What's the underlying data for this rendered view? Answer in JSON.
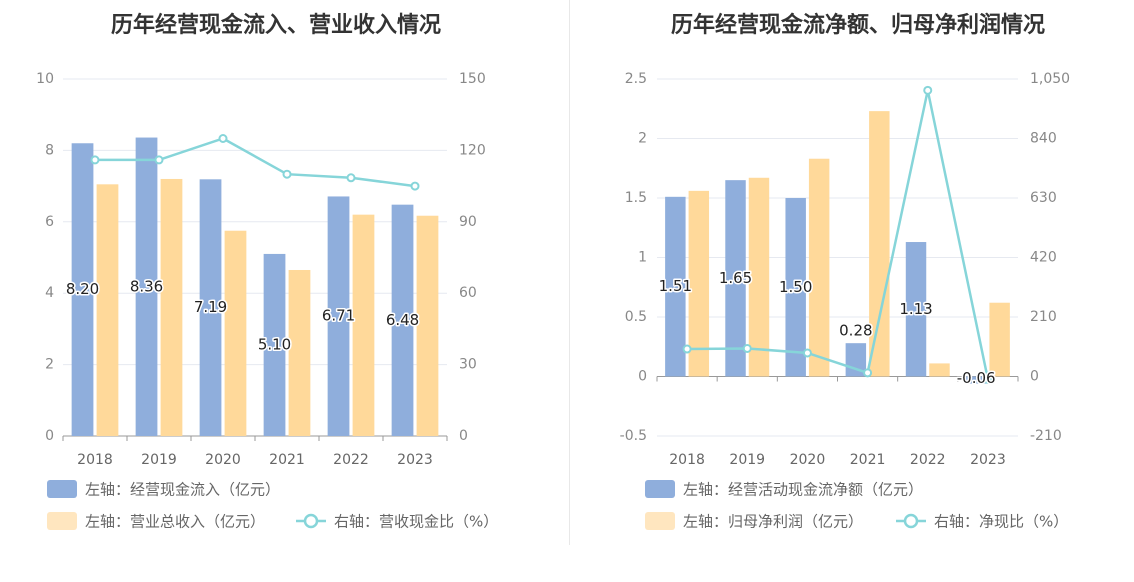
{
  "colors": {
    "bar_blue": "#8FAEDC",
    "bar_orange": "#FFD99A",
    "line_teal": "#86D5D9",
    "legend_orange": "#FFE6BF",
    "grid": "#E6E9F0",
    "axis": "#999999"
  },
  "chart_data": [
    {
      "type": "bar",
      "title": "历年经营现金流入、营业收入情况",
      "categories": [
        "2018",
        "2019",
        "2020",
        "2021",
        "2022",
        "2023"
      ],
      "left_axis": {
        "ylim": [
          0,
          10
        ],
        "ticks": [
          0,
          2,
          4,
          6,
          8,
          10
        ],
        "tick_labels": [
          "0",
          "2",
          "4",
          "6",
          "8",
          "10"
        ]
      },
      "right_axis": {
        "ylim": [
          0,
          150
        ],
        "ticks": [
          0,
          30,
          60,
          90,
          120,
          150
        ],
        "tick_labels": [
          "0",
          "30",
          "60",
          "90",
          "120",
          "150"
        ]
      },
      "series": [
        {
          "name": "左轴：经营现金流入（亿元）",
          "kind": "bar",
          "axis": "left",
          "color": "#8FAEDC",
          "values": [
            8.2,
            8.36,
            7.19,
            5.1,
            6.71,
            6.48
          ],
          "labels": [
            "8.20",
            "8.36",
            "7.19",
            "5.10",
            "6.71",
            "6.48"
          ]
        },
        {
          "name": "左轴：营业总收入（亿元）",
          "kind": "bar",
          "axis": "left",
          "color": "#FFD99A",
          "values": [
            7.05,
            7.2,
            5.75,
            4.65,
            6.2,
            6.17
          ]
        },
        {
          "name": "右轴：营收现金比（%）",
          "kind": "line",
          "axis": "right",
          "color": "#86D5D9",
          "values": [
            116,
            116,
            125,
            110,
            108.5,
            105
          ]
        }
      ],
      "grid": true
    },
    {
      "type": "bar",
      "title": "历年经营现金流净额、归母净利润情况",
      "categories": [
        "2018",
        "2019",
        "2020",
        "2021",
        "2022",
        "2023"
      ],
      "left_axis": {
        "ylim": [
          -0.5,
          2.5
        ],
        "ticks": [
          -0.5,
          0,
          0.5,
          1,
          1.5,
          2,
          2.5
        ],
        "tick_labels": [
          "-0.5",
          "0",
          "0.5",
          "1",
          "1.5",
          "2",
          "2.5"
        ]
      },
      "right_axis": {
        "ylim": [
          -210,
          1050
        ],
        "ticks": [
          -210,
          0,
          210,
          420,
          630,
          840,
          1050
        ],
        "tick_labels": [
          "-210",
          "0",
          "210",
          "420",
          "630",
          "840",
          "1,050"
        ]
      },
      "series": [
        {
          "name": "左轴：经营活动现金流净额（亿元）",
          "kind": "bar",
          "axis": "left",
          "color": "#8FAEDC",
          "values": [
            1.51,
            1.65,
            1.5,
            0.28,
            1.13,
            -0.06
          ],
          "labels": [
            "1.51",
            "1.65",
            "1.50",
            "0.28",
            "1.13",
            "-0.06"
          ]
        },
        {
          "name": "左轴：归母净利润（亿元）",
          "kind": "bar",
          "axis": "left",
          "color": "#FFD99A",
          "values": [
            1.56,
            1.67,
            1.83,
            2.23,
            0.11,
            0.62
          ]
        },
        {
          "name": "右轴：净现比（%）",
          "kind": "line",
          "axis": "right",
          "color": "#86D5D9",
          "values": [
            97,
            99,
            83,
            13,
            1010,
            -10
          ]
        }
      ],
      "grid": true
    }
  ]
}
